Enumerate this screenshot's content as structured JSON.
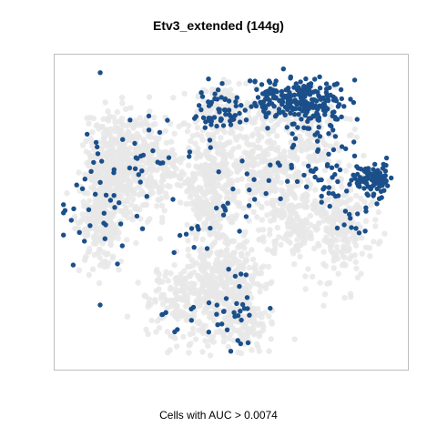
{
  "chart_data": {
    "type": "scatter",
    "title": "Etv3_extended (144g)",
    "xlabel": "Cells with AUC > 0.0074",
    "ylabel": "",
    "grid": false,
    "legend": "none",
    "series": [
      {
        "color": "#e8e8e8",
        "seed": 7,
        "clusters": [
          {
            "x": 0.16,
            "y": 0.62,
            "sx": 0.045,
            "sy": 0.1,
            "n": 420
          },
          {
            "x": 0.12,
            "y": 0.45,
            "sx": 0.03,
            "sy": 0.07,
            "n": 160
          },
          {
            "x": 0.26,
            "y": 0.66,
            "sx": 0.07,
            "sy": 0.07,
            "n": 300
          },
          {
            "x": 0.44,
            "y": 0.58,
            "sx": 0.035,
            "sy": 0.12,
            "n": 340
          },
          {
            "x": 0.6,
            "y": 0.64,
            "sx": 0.06,
            "sy": 0.06,
            "n": 260
          },
          {
            "x": 0.67,
            "y": 0.48,
            "sx": 0.05,
            "sy": 0.06,
            "n": 180
          },
          {
            "x": 0.82,
            "y": 0.47,
            "sx": 0.045,
            "sy": 0.09,
            "n": 220
          },
          {
            "x": 0.42,
            "y": 0.22,
            "sx": 0.08,
            "sy": 0.07,
            "n": 380
          },
          {
            "x": 0.5,
            "y": 0.32,
            "sx": 0.05,
            "sy": 0.06,
            "n": 160
          },
          {
            "x": 0.54,
            "y": 0.13,
            "sx": 0.04,
            "sy": 0.04,
            "n": 100
          },
          {
            "x": 0.63,
            "y": 0.82,
            "sx": 0.08,
            "sy": 0.04,
            "n": 140
          },
          {
            "x": 0.75,
            "y": 0.73,
            "sx": 0.04,
            "sy": 0.05,
            "n": 80
          },
          {
            "x": 0.47,
            "y": 0.85,
            "sx": 0.04,
            "sy": 0.04,
            "n": 90
          }
        ]
      },
      {
        "color": "#1b4f8a",
        "seed": 11,
        "clusters": [
          {
            "x": 0.64,
            "y": 0.87,
            "sx": 0.05,
            "sy": 0.035,
            "n": 110
          },
          {
            "x": 0.74,
            "y": 0.85,
            "sx": 0.05,
            "sy": 0.045,
            "n": 150
          },
          {
            "x": 0.46,
            "y": 0.83,
            "sx": 0.03,
            "sy": 0.04,
            "n": 55
          },
          {
            "x": 0.91,
            "y": 0.61,
            "sx": 0.03,
            "sy": 0.025,
            "n": 95
          },
          {
            "x": 0.75,
            "y": 0.65,
            "sx": 0.07,
            "sy": 0.06,
            "n": 40
          },
          {
            "x": 0.83,
            "y": 0.53,
            "sx": 0.04,
            "sy": 0.06,
            "n": 22
          },
          {
            "x": 0.11,
            "y": 0.52,
            "sx": 0.05,
            "sy": 0.14,
            "n": 35
          },
          {
            "x": 0.24,
            "y": 0.7,
            "sx": 0.08,
            "sy": 0.07,
            "n": 30
          },
          {
            "x": 0.4,
            "y": 0.45,
            "sx": 0.08,
            "sy": 0.1,
            "n": 18
          },
          {
            "x": 0.57,
            "y": 0.55,
            "sx": 0.05,
            "sy": 0.06,
            "n": 14
          },
          {
            "x": 0.52,
            "y": 0.18,
            "sx": 0.03,
            "sy": 0.06,
            "n": 28
          },
          {
            "x": 0.38,
            "y": 0.17,
            "sx": 0.07,
            "sy": 0.05,
            "n": 10
          }
        ]
      }
    ]
  }
}
